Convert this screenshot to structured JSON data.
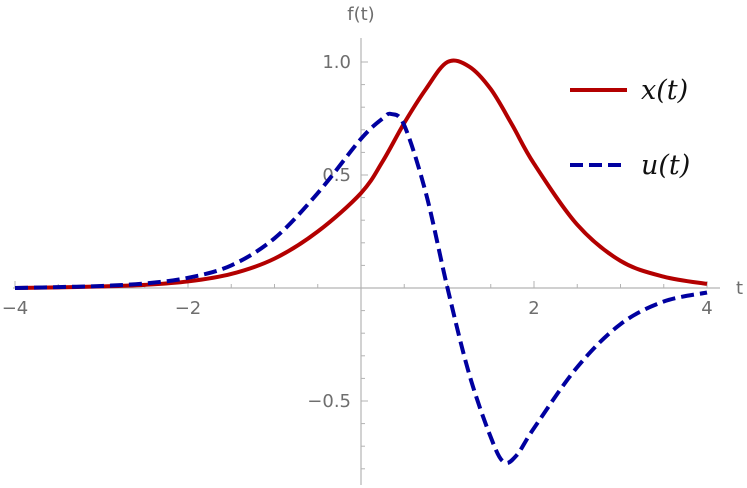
{
  "chart_data": {
    "type": "line",
    "title": "",
    "xlabel": "t",
    "ylabel": "f(t)",
    "xlim": [
      -4,
      4
    ],
    "ylim": [
      -0.86,
      1.11
    ],
    "x_ticks": [
      {
        "value": -4,
        "label": "−4"
      },
      {
        "value": -2,
        "label": "−2"
      },
      {
        "value": 2,
        "label": "2"
      },
      {
        "value": 4,
        "label": "4"
      }
    ],
    "y_ticks": [
      {
        "value": -0.5,
        "label": "−0.5"
      },
      {
        "value": 0.5,
        "label": "0.5"
      },
      {
        "value": 1.0,
        "label": "1.0"
      }
    ],
    "legend_position": "top-right",
    "series": [
      {
        "name": "x(t)",
        "color": "#b30000",
        "dash": "solid",
        "x": [
          -4,
          -3.5,
          -3,
          -2.5,
          -2,
          -1.5,
          -1,
          -0.5,
          0,
          0.25,
          0.5,
          0.75,
          1,
          1.25,
          1.5,
          1.75,
          2,
          2.5,
          3,
          3.5,
          4
        ],
        "y": [
          0,
          0.003,
          0.007,
          0.014,
          0.029,
          0.062,
          0.13,
          0.25,
          0.42,
          0.56,
          0.73,
          0.88,
          1.0,
          0.98,
          0.88,
          0.72,
          0.55,
          0.28,
          0.12,
          0.05,
          0.018
        ]
      },
      {
        "name": "u(t)",
        "color": "#0000a0",
        "dash": "dashed",
        "x": [
          -4,
          -3.5,
          -3,
          -2.5,
          -2,
          -1.5,
          -1,
          -0.5,
          0,
          0.25,
          0.35,
          0.5,
          0.75,
          1,
          1.25,
          1.5,
          1.65,
          1.8,
          2,
          2.5,
          3,
          3.5,
          4
        ],
        "y": [
          0,
          0.004,
          0.009,
          0.02,
          0.045,
          0.1,
          0.22,
          0.42,
          0.66,
          0.75,
          0.77,
          0.72,
          0.42,
          0.0,
          -0.38,
          -0.66,
          -0.77,
          -0.74,
          -0.62,
          -0.35,
          -0.16,
          -0.06,
          -0.02
        ]
      }
    ]
  }
}
